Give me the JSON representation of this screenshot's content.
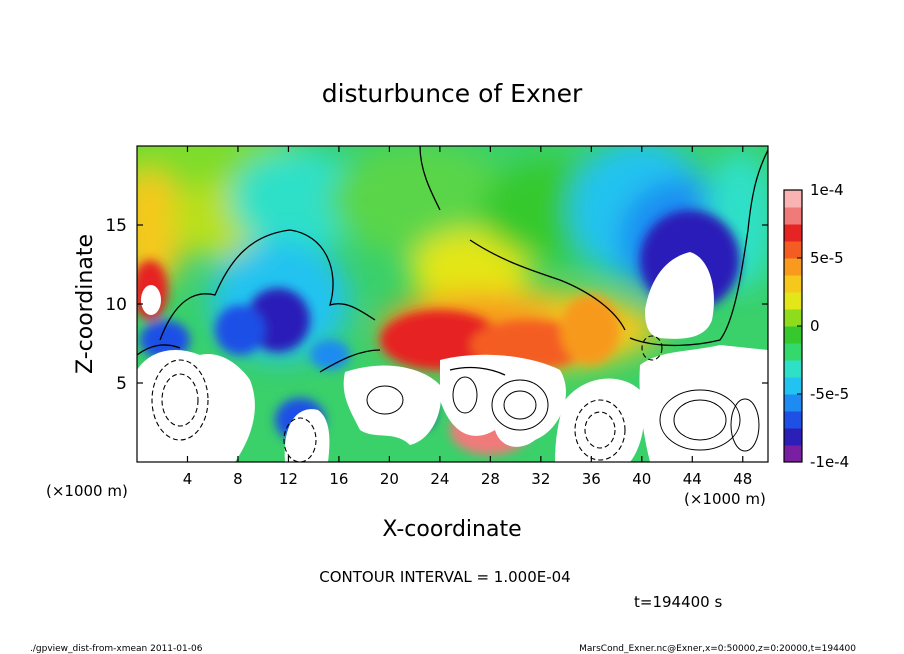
{
  "chart_data": {
    "type": "heatmap",
    "title": "disturbunce of Exner",
    "xlabel": "X-coordinate",
    "ylabel": "Z-coordinate",
    "x_unit_label": "(×1000 m)",
    "x_unit_label_right": "(×1000 m)",
    "xlim": [
      0,
      50
    ],
    "ylim": [
      0,
      20
    ],
    "x_ticks": [
      4,
      8,
      12,
      16,
      20,
      24,
      28,
      32,
      36,
      40,
      44,
      48
    ],
    "y_ticks": [
      5,
      10,
      15
    ],
    "colorbar": {
      "min": -0.0001,
      "max": 0.0001,
      "tick_values": [
        0.0001,
        5e-05,
        0,
        -5e-05,
        -0.0001
      ],
      "tick_labels": [
        "1e-4",
        "5e-5",
        "0",
        "-5e-5",
        "-1e-4"
      ],
      "colors": [
        "#7a1fa2",
        "#2b1fb8",
        "#1e50e6",
        "#1d8bf2",
        "#22c3f0",
        "#2fe0c8",
        "#33d96a",
        "#35c92e",
        "#8fdc1c",
        "#e3e618",
        "#f6c81b",
        "#f79a1e",
        "#f45d22",
        "#e62424",
        "#f07a7a",
        "#f9b3b3"
      ]
    },
    "contour_interval_text": "CONTOUR INTERVAL = 1.000E-04",
    "time_text": "t=194400 s",
    "footer_left": "./gpview_dist-from-xmean  2011-01-06",
    "footer_right": "MarsCond_Exner.nc@Exner,x=0:50000,z=0:20000,t=194400"
  }
}
